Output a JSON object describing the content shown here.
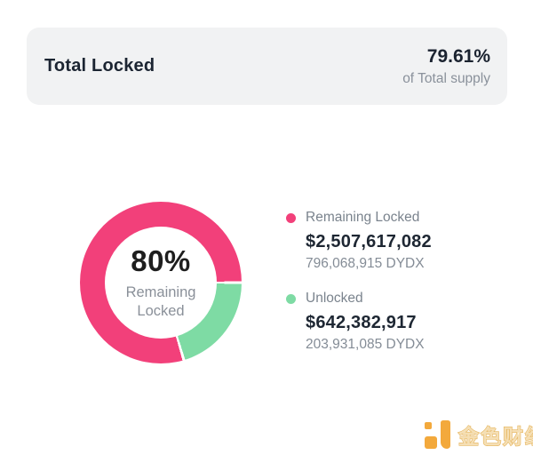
{
  "header": {
    "title": "Total Locked",
    "percent": "79.61%",
    "percent_caption": "of Total supply"
  },
  "donut_center": {
    "value": "80%",
    "label_line1": "Remaining",
    "label_line2": "Locked"
  },
  "legend": {
    "items": [
      {
        "label": "Remaining Locked",
        "value_usd": "$2,507,617,082",
        "value_tokens": "796,068,915 DYDX",
        "color": "#F2407A"
      },
      {
        "label": "Unlocked",
        "value_usd": "$642,382,917",
        "value_tokens": "203,931,085 DYDX",
        "color": "#7EDBA4"
      }
    ]
  },
  "watermark": {
    "brand": "金色财经"
  },
  "colors": {
    "card_bg": "#F1F2F3",
    "dark_text": "#1C2532",
    "gray_text": "#8A919B",
    "locked_pink": "#F2407A",
    "unlocked_green": "#7EDBA4",
    "watermark_gold": "#F3A93C"
  },
  "chart_data": {
    "type": "pie",
    "donut": true,
    "title": "Total Locked",
    "categories": [
      "Remaining Locked",
      "Unlocked"
    ],
    "values_percent": [
      79.61,
      20.39
    ],
    "values_usd": [
      2507617082,
      642382917
    ],
    "values_dydx": [
      796068915,
      203931085
    ],
    "colors": [
      "#F2407A",
      "#7EDBA4"
    ],
    "center_label": "80% Remaining Locked",
    "unlocked_start_angle_deg_clockwise_from_top": 90,
    "segment_gap_deg": 2,
    "legend_position": "right"
  }
}
